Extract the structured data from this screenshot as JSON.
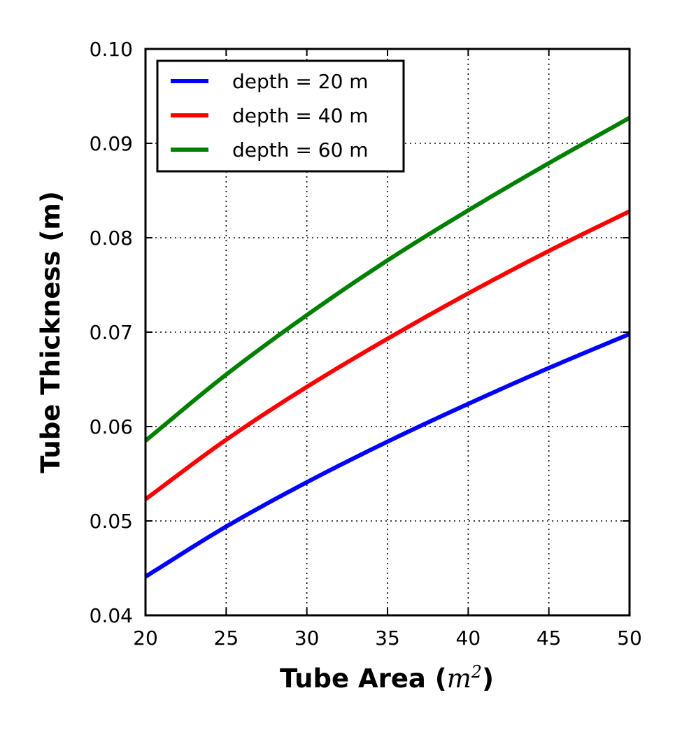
{
  "chart_data": {
    "type": "line",
    "xlabel": {
      "prefix": "Tube Area (",
      "unit_base": "m",
      "unit_exp": "2",
      "suffix": ")"
    },
    "ylabel": "Tube Thickness (m)",
    "xlim": [
      20,
      50
    ],
    "ylim": [
      0.04,
      0.1
    ],
    "x_ticks": [
      20,
      25,
      30,
      35,
      40,
      45,
      50
    ],
    "x_tick_labels": [
      "20",
      "25",
      "30",
      "35",
      "40",
      "45",
      "50"
    ],
    "y_ticks": [
      0.04,
      0.05,
      0.06,
      0.07,
      0.08,
      0.09,
      0.1
    ],
    "y_tick_labels": [
      "0.04",
      "0.05",
      "0.06",
      "0.07",
      "0.08",
      "0.09",
      "0.10"
    ],
    "grid": true,
    "grid_style": "dotted",
    "legend_position": "top-left",
    "x": [
      20,
      25,
      30,
      35,
      40,
      45,
      50
    ],
    "series": [
      {
        "name": "depth = 20 m",
        "color": "#0000ff",
        "values": [
          0.0441,
          0.0494,
          0.0541,
          0.0584,
          0.0624,
          0.0662,
          0.0698
        ]
      },
      {
        "name": "depth = 40 m",
        "color": "#ff0000",
        "values": [
          0.0523,
          0.0586,
          0.0642,
          0.0693,
          0.0741,
          0.0786,
          0.0828
        ]
      },
      {
        "name": "depth = 60 m",
        "color": "#008000",
        "values": [
          0.0585,
          0.0655,
          0.0718,
          0.0776,
          0.0829,
          0.0879,
          0.0927
        ]
      }
    ]
  }
}
